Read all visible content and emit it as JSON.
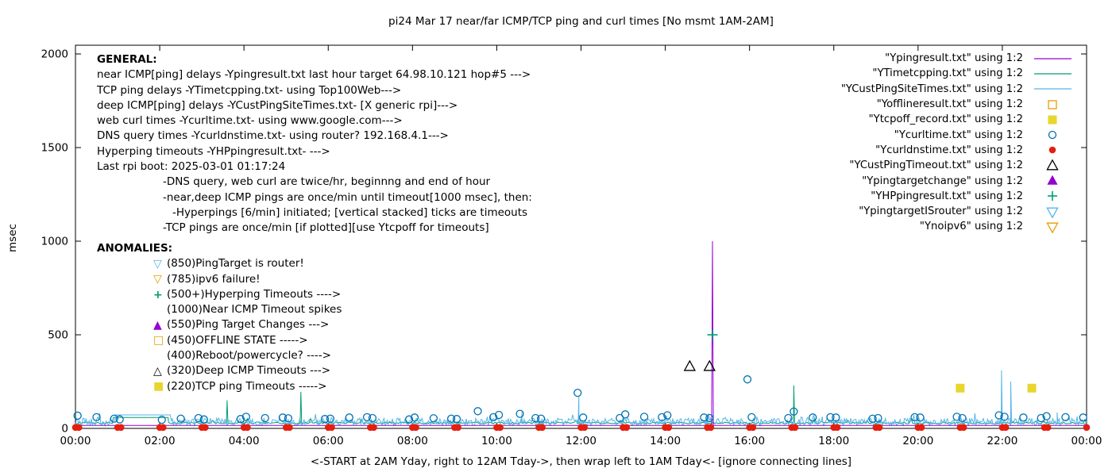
{
  "chart_data": {
    "type": "line",
    "title": "pi24 Mar 17  near/far ICMP/TCP ping and curl times [No msmt 1AM-2AM]",
    "xlabel": "<-START at 2AM Yday, right to 12AM Tday->, then wrap left to 1AM Tday<- [ignore connecting lines]",
    "ylabel": "msec",
    "ylim": [
      0,
      2000
    ],
    "grid": false,
    "legend_position": "top-right-inside",
    "yticks": [
      {
        "v": 0,
        "label": "0"
      },
      {
        "v": 500,
        "label": "500"
      },
      {
        "v": 1000,
        "label": "1000"
      },
      {
        "v": 1500,
        "label": "1500"
      },
      {
        "v": 2000,
        "label": "2000"
      }
    ],
    "xticks": [
      {
        "h": 0,
        "label": "00:00"
      },
      {
        "h": 2,
        "label": "02:00"
      },
      {
        "h": 4,
        "label": "04:00"
      },
      {
        "h": 6,
        "label": "06:00"
      },
      {
        "h": 8,
        "label": "08:00"
      },
      {
        "h": 10,
        "label": "10:00"
      },
      {
        "h": 12,
        "label": "12:00"
      },
      {
        "h": 14,
        "label": "14:00"
      },
      {
        "h": 16,
        "label": "16:00"
      },
      {
        "h": 18,
        "label": "18:00"
      },
      {
        "h": 20,
        "label": "20:00"
      },
      {
        "h": 22,
        "label": "22:00"
      },
      {
        "h": 24,
        "label": "00:00"
      }
    ],
    "series": [
      {
        "name": "\"Ypingresult.txt\" using 1:2",
        "type": "line",
        "color": "#9400d3",
        "baseline": 16,
        "spikes": [
          [
            15.12,
            1000
          ]
        ]
      },
      {
        "name": "\"YTimetcpping.txt\" using 1:2",
        "type": "noisy-line",
        "color": "#009e73",
        "noise": {
          "seed": 99,
          "min": 24,
          "spread": 10,
          "burst_prob": 0.03,
          "burst_amp": 25,
          "per_hour": 24
        },
        "spikes": [
          [
            3.6,
            150
          ],
          [
            5.35,
            195
          ],
          [
            17.05,
            230
          ]
        ],
        "flat_segments": [
          [
            0.9,
            2.2,
            58
          ]
        ]
      },
      {
        "name": "\"YCustPingSiteTimes.txt\" using 1:2",
        "type": "noisy-line",
        "color": "#56b4e9",
        "noise": {
          "seed": 12,
          "min": 15,
          "spread": 40,
          "burst_prob": 0.08,
          "burst_amp": 30,
          "per_hour": 40
        },
        "spikes": [
          [
            10.6,
            90
          ],
          [
            11.95,
            175
          ],
          [
            21.98,
            310
          ],
          [
            22.2,
            250
          ],
          [
            23.3,
            85
          ]
        ],
        "flat_segments": [
          [
            0.95,
            2.25,
            72
          ]
        ]
      },
      {
        "name": "\"Yofflineresult.txt\" using 1:2",
        "type": "points",
        "marker": "open-square",
        "color": "#e69f00",
        "size": 5,
        "points": []
      },
      {
        "name": "\"Ytcpoff_record.txt\" using 1:2",
        "type": "points",
        "marker": "filled-square",
        "color": "#e8d62e",
        "size": 5.5,
        "points": [
          [
            21.0,
            215
          ],
          [
            22.7,
            215
          ]
        ]
      },
      {
        "name": "\"Ycurltime.txt\" using 1:2",
        "type": "points",
        "marker": "open-circle",
        "color": "#0072b2",
        "size": 4.5,
        "points": [
          [
            0.05,
            68
          ],
          [
            0.5,
            60
          ],
          [
            0.92,
            52
          ],
          [
            1.05,
            48
          ],
          [
            2.05,
            46
          ],
          [
            2.5,
            52
          ],
          [
            2.92,
            55
          ],
          [
            3.05,
            48
          ],
          [
            3.92,
            50
          ],
          [
            4.05,
            62
          ],
          [
            4.5,
            55
          ],
          [
            4.92,
            58
          ],
          [
            5.05,
            54
          ],
          [
            5.92,
            50
          ],
          [
            6.05,
            52
          ],
          [
            6.5,
            58
          ],
          [
            6.92,
            60
          ],
          [
            7.05,
            55
          ],
          [
            7.92,
            48
          ],
          [
            8.05,
            58
          ],
          [
            8.5,
            54
          ],
          [
            8.92,
            52
          ],
          [
            9.05,
            50
          ],
          [
            9.55,
            92
          ],
          [
            9.92,
            60
          ],
          [
            10.05,
            72
          ],
          [
            10.55,
            78
          ],
          [
            10.92,
            55
          ],
          [
            11.05,
            52
          ],
          [
            11.92,
            190
          ],
          [
            12.05,
            58
          ],
          [
            12.92,
            55
          ],
          [
            13.05,
            75
          ],
          [
            13.5,
            62
          ],
          [
            13.92,
            60
          ],
          [
            14.05,
            70
          ],
          [
            14.92,
            58
          ],
          [
            15.05,
            55
          ],
          [
            15.95,
            262
          ],
          [
            16.05,
            60
          ],
          [
            16.92,
            55
          ],
          [
            17.05,
            90
          ],
          [
            17.5,
            58
          ],
          [
            17.92,
            60
          ],
          [
            18.05,
            58
          ],
          [
            18.92,
            52
          ],
          [
            19.05,
            55
          ],
          [
            19.92,
            60
          ],
          [
            20.05,
            58
          ],
          [
            20.92,
            62
          ],
          [
            21.05,
            55
          ],
          [
            21.92,
            70
          ],
          [
            22.05,
            62
          ],
          [
            22.5,
            58
          ],
          [
            22.92,
            55
          ],
          [
            23.05,
            65
          ],
          [
            23.5,
            60
          ],
          [
            23.92,
            58
          ]
        ]
      },
      {
        "name": "\"Ycurldnstime.txt\" using 1:2",
        "type": "points",
        "marker": "filled-circle",
        "color": "#e51e10",
        "size": 4.3,
        "points": [
          [
            0,
            5
          ],
          [
            0.08,
            5
          ],
          [
            1,
            5
          ],
          [
            1.08,
            5
          ],
          [
            2,
            5
          ],
          [
            2.08,
            5
          ],
          [
            3,
            5
          ],
          [
            3.08,
            5
          ],
          [
            4,
            5
          ],
          [
            4.08,
            5
          ],
          [
            5,
            5
          ],
          [
            5.08,
            5
          ],
          [
            6,
            5
          ],
          [
            6.08,
            5
          ],
          [
            7,
            5
          ],
          [
            7.08,
            5
          ],
          [
            8,
            5
          ],
          [
            8.08,
            5
          ],
          [
            9,
            5
          ],
          [
            9.08,
            5
          ],
          [
            10,
            5
          ],
          [
            10.08,
            5
          ],
          [
            11,
            5
          ],
          [
            11.08,
            5
          ],
          [
            12,
            5
          ],
          [
            12.08,
            5
          ],
          [
            13,
            5
          ],
          [
            13.08,
            5
          ],
          [
            14,
            5
          ],
          [
            14.08,
            5
          ],
          [
            15,
            5
          ],
          [
            15.08,
            5
          ],
          [
            16,
            5
          ],
          [
            16.08,
            5
          ],
          [
            17,
            5
          ],
          [
            17.08,
            5
          ],
          [
            18,
            5
          ],
          [
            18.08,
            5
          ],
          [
            19,
            5
          ],
          [
            19.08,
            5
          ],
          [
            20,
            5
          ],
          [
            20.08,
            5
          ],
          [
            21,
            5
          ],
          [
            21.08,
            5
          ],
          [
            22,
            5
          ],
          [
            22.08,
            5
          ],
          [
            23,
            5
          ],
          [
            23.08,
            5
          ],
          [
            24,
            5
          ]
        ]
      },
      {
        "name": "\"YCustPingTimeout.txt\" using 1:2",
        "type": "points",
        "marker": "open-triangle-up",
        "color": "#000000",
        "size": 6,
        "points": [
          [
            14.58,
            330
          ],
          [
            15.05,
            330
          ]
        ]
      },
      {
        "name": "\"Ypingtargetchange\" using 1:2",
        "type": "points",
        "marker": "filled-triangle-up",
        "color": "#9400d3",
        "size": 6,
        "points": []
      },
      {
        "name": "\"YHPpingresult.txt\" using 1:2",
        "type": "points",
        "marker": "plus",
        "color": "#009e73",
        "size": 6.5,
        "points": [
          [
            15.12,
            500
          ]
        ]
      },
      {
        "name": "\"YpingtargetISrouter\" using 1:2",
        "type": "points",
        "marker": "open-triangle-down",
        "color": "#56b4e9",
        "size": 6,
        "points": []
      },
      {
        "name": "\"Ynoipv6\" using 1:2",
        "type": "points",
        "marker": "open-triangle-down",
        "color": "#e69f00",
        "size": 6,
        "points": []
      }
    ]
  },
  "general": {
    "heading": "GENERAL:",
    "lines": [
      {
        "text": "near ICMP[ping] delays -Ypingresult.txt last hour target 64.98.10.121 hop#5 --->",
        "indent": 0
      },
      {
        "text": "TCP ping delays -YTimetcpping.txt- using Top100Web--->",
        "indent": 0
      },
      {
        "text": "deep ICMP[ping] delays -YCustPingSiteTimes.txt- [X generic rpi]--->",
        "indent": 0
      },
      {
        "text": "web curl times -Ycurltime.txt- using www.google.com--->",
        "indent": 0
      },
      {
        "text": "DNS query times -Ycurldnstime.txt- using router? 192.168.4.1--->",
        "indent": 0
      },
      {
        "text": "Hyperping timeouts -YHPpingresult.txt- --->",
        "indent": 0
      },
      {
        "text": "Last rpi boot: 2025-03-01 01:17:24",
        "indent": 0
      },
      {
        "text": "-DNS query, web curl are twice/hr, beginnng and end of hour",
        "indent": 1
      },
      {
        "text": "-near,deep ICMP pings are once/min until timeout[1000 msec], then:",
        "indent": 1
      },
      {
        "text": "-Hyperpings [6/min] initiated; [vertical stacked] ticks are timeouts",
        "indent": 2
      },
      {
        "text": "-TCP pings are once/min [if plotted][use Ytcpoff for timeouts]",
        "indent": 1
      }
    ]
  },
  "anomalies": {
    "heading": "ANOMALIES:",
    "rows": [
      {
        "symbol": "▽",
        "color": "#56b4e9",
        "text": "(850)PingTarget is router!"
      },
      {
        "symbol": "▽",
        "color": "#e69f00",
        "text": "(785)ipv6 failure!"
      },
      {
        "symbol": "+",
        "color": "#009e73",
        "text": "(500+)Hyperping Timeouts ---->"
      },
      {
        "symbol": "",
        "color": "#000000",
        "text": "(1000)Near ICMP Timeout spikes"
      },
      {
        "symbol": "▲",
        "color": "#9400d3",
        "text": "(550)Ping Target Changes --->"
      },
      {
        "symbol": "□",
        "color": "#e69f00",
        "text": "(450)OFFLINE STATE ----->"
      },
      {
        "symbol": "",
        "color": "#000000",
        "text": "(400)Reboot/powercycle? ---->"
      },
      {
        "symbol": "△",
        "color": "#000000",
        "text": "(320)Deep ICMP Timeouts --->"
      },
      {
        "symbol": "■",
        "color": "#e8d62e",
        "text": "(220)TCP ping Timeouts ----->"
      }
    ]
  }
}
